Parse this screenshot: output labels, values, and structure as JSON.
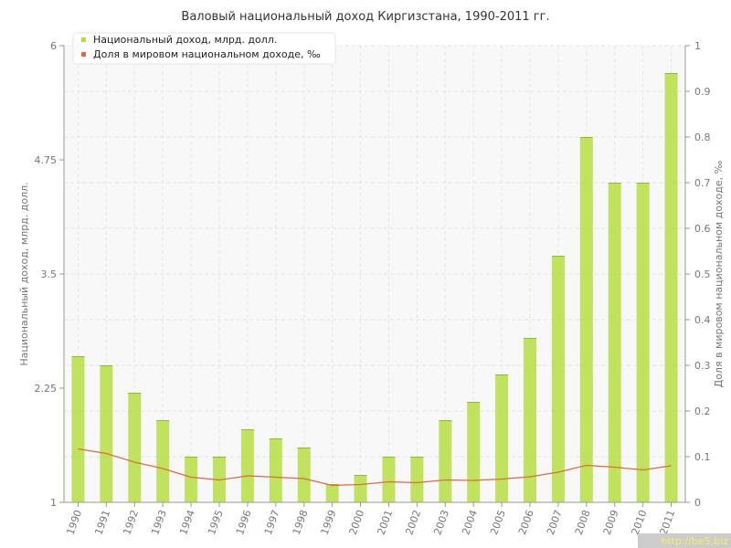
{
  "chart_data": {
    "type": "bar",
    "title": "Валовый национальный доход Киргизстана, 1990-2011 гг.",
    "ylabel": "Национальный доход, млрд. долл.",
    "y2label": "Доля в мировом национальном доходе, ‰",
    "ylim": [
      1,
      6
    ],
    "y2lim": [
      0,
      1
    ],
    "yticks": [
      "1",
      "2.25",
      "3.5",
      "4.75",
      "6"
    ],
    "y2ticks": [
      "0",
      "0.1",
      "0.2",
      "0.3",
      "0.4",
      "0.5",
      "0.6",
      "0.7",
      "0.8",
      "0.9",
      "1"
    ],
    "categories": [
      "1990",
      "1991",
      "1992",
      "1993",
      "1994",
      "1995",
      "1996",
      "1997",
      "1998",
      "1999",
      "2000",
      "2001",
      "2002",
      "2003",
      "2004",
      "2005",
      "2006",
      "2007",
      "2008",
      "2009",
      "2010",
      "2011"
    ],
    "series": [
      {
        "name": "Национальный доход, млрд. долл.",
        "kind": "bar",
        "axis": "left",
        "color": "#b5dd3c",
        "values": [
          2.6,
          2.5,
          2.2,
          1.9,
          1.5,
          1.5,
          1.8,
          1.7,
          1.6,
          1.2,
          1.3,
          1.5,
          1.5,
          1.9,
          2.1,
          2.4,
          2.8,
          3.7,
          5.0,
          4.5,
          4.5,
          5.7
        ]
      },
      {
        "name": "Доля в мировом национальном доходе, ‰",
        "kind": "line",
        "axis": "right",
        "color": "#e06a3a",
        "values": [
          0.117,
          0.107,
          0.088,
          0.074,
          0.055,
          0.049,
          0.058,
          0.055,
          0.052,
          0.037,
          0.039,
          0.045,
          0.043,
          0.049,
          0.048,
          0.051,
          0.056,
          0.066,
          0.081,
          0.077,
          0.071,
          0.08
        ]
      }
    ],
    "grid": true,
    "legend_position": "top-left"
  },
  "watermark": "http://be5.biz"
}
